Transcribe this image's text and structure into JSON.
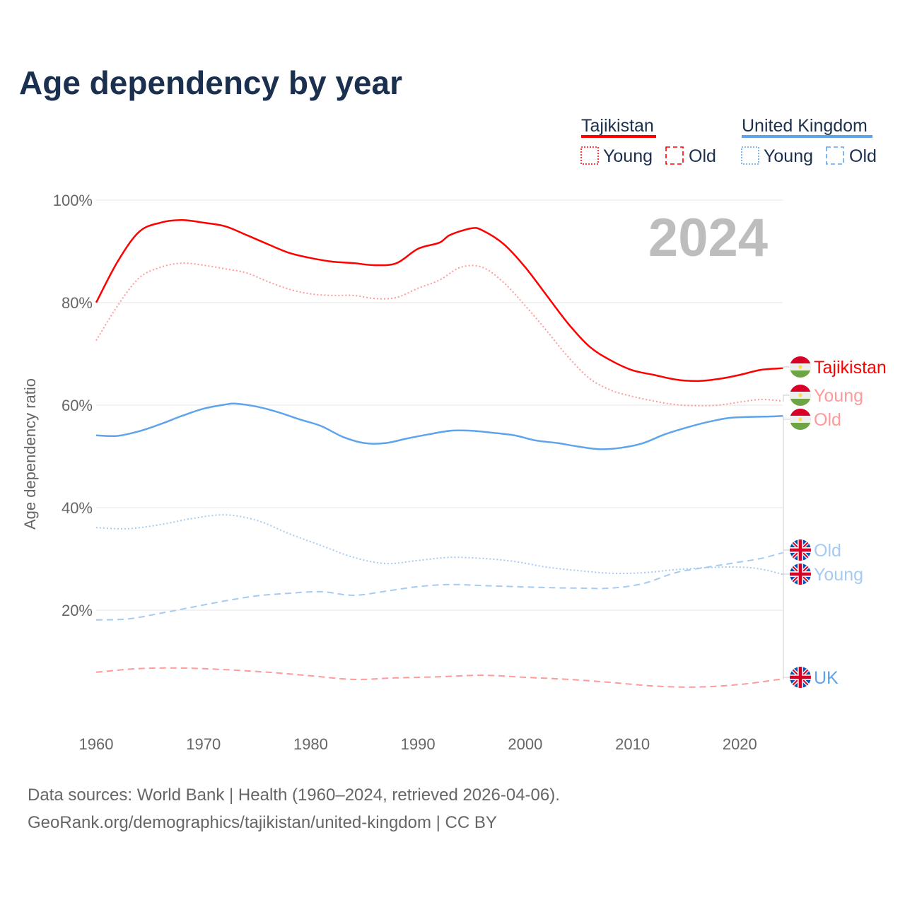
{
  "chart_data": {
    "type": "line",
    "title": "Age dependency by year",
    "xlabel": "",
    "ylabel": "Age dependency ratio",
    "xlim": [
      1960,
      2024
    ],
    "ylim": [
      0,
      100
    ],
    "x_ticks": [
      "1960",
      "1970",
      "1980",
      "1990",
      "2000",
      "2010",
      "2020"
    ],
    "y_ticks": [
      "20%",
      "40%",
      "60%",
      "80%",
      "100%"
    ],
    "grid": true,
    "year_watermark": "2024",
    "legend": {
      "groups": [
        {
          "name": "Tajikistan",
          "color": "#ff0000",
          "items": [
            "Young",
            "Old"
          ]
        },
        {
          "name": "United Kingdom",
          "color": "#5ea4ea",
          "items": [
            "Young",
            "Old"
          ]
        }
      ]
    },
    "series": [
      {
        "name": "Tajikistan",
        "end_label": "Tajikistan",
        "country": "tj",
        "color": "#ff0000",
        "style": "solid",
        "points": [
          [
            1960,
            80
          ],
          [
            1962,
            88
          ],
          [
            1964,
            93.8
          ],
          [
            1966,
            95.6
          ],
          [
            1968,
            96.1
          ],
          [
            1970,
            95.6
          ],
          [
            1972,
            94.9
          ],
          [
            1974,
            93.2
          ],
          [
            1976,
            91.4
          ],
          [
            1978,
            89.7
          ],
          [
            1980,
            88.7
          ],
          [
            1982,
            88
          ],
          [
            1984,
            87.7
          ],
          [
            1986,
            87.3
          ],
          [
            1988,
            87.7
          ],
          [
            1990,
            90.5
          ],
          [
            1992,
            91.7
          ],
          [
            1993,
            93.2
          ],
          [
            1995,
            94.5
          ],
          [
            1996,
            94.1
          ],
          [
            1998,
            91.4
          ],
          [
            2000,
            86.9
          ],
          [
            2002,
            81.4
          ],
          [
            2004,
            75.9
          ],
          [
            2006,
            71.4
          ],
          [
            2008,
            68.7
          ],
          [
            2010,
            66.8
          ],
          [
            2012,
            65.9
          ],
          [
            2014,
            65
          ],
          [
            2016,
            64.7
          ],
          [
            2018,
            65.1
          ],
          [
            2020,
            65.9
          ],
          [
            2022,
            66.9
          ],
          [
            2024,
            67.2
          ]
        ]
      },
      {
        "name": "Tajikistan Young",
        "end_label": "Young",
        "country": "tj",
        "color": "#ff9a9a",
        "style": "dotted",
        "points": [
          [
            1960,
            72.6
          ],
          [
            1962,
            79.4
          ],
          [
            1964,
            84.8
          ],
          [
            1966,
            86.9
          ],
          [
            1968,
            87.7
          ],
          [
            1970,
            87.3
          ],
          [
            1972,
            86.6
          ],
          [
            1974,
            85.8
          ],
          [
            1976,
            84.1
          ],
          [
            1978,
            82.6
          ],
          [
            1980,
            81.7
          ],
          [
            1982,
            81.4
          ],
          [
            1984,
            81.4
          ],
          [
            1986,
            80.8
          ],
          [
            1988,
            81
          ],
          [
            1990,
            82.8
          ],
          [
            1992,
            84.4
          ],
          [
            1994,
            86.9
          ],
          [
            1996,
            86.9
          ],
          [
            1998,
            83.9
          ],
          [
            2000,
            79.4
          ],
          [
            2002,
            74.5
          ],
          [
            2004,
            69.4
          ],
          [
            2006,
            65.2
          ],
          [
            2008,
            62.9
          ],
          [
            2010,
            61.7
          ],
          [
            2012,
            60.8
          ],
          [
            2014,
            60.1
          ],
          [
            2016,
            59.9
          ],
          [
            2018,
            60
          ],
          [
            2020,
            60.6
          ],
          [
            2022,
            61.1
          ],
          [
            2024,
            60.8
          ]
        ]
      },
      {
        "name": "Tajikistan Old",
        "end_label": "Old",
        "country": "tj",
        "color": "#ff9a9a",
        "style": "dashed",
        "points": [
          [
            1960,
            7.9
          ],
          [
            1964,
            8.6
          ],
          [
            1968,
            8.7
          ],
          [
            1972,
            8.4
          ],
          [
            1976,
            7.9
          ],
          [
            1980,
            7.2
          ],
          [
            1984,
            6.5
          ],
          [
            1988,
            6.8
          ],
          [
            1992,
            7
          ],
          [
            1996,
            7.3
          ],
          [
            2000,
            6.9
          ],
          [
            2004,
            6.5
          ],
          [
            2008,
            5.9
          ],
          [
            2012,
            5.2
          ],
          [
            2016,
            5
          ],
          [
            2020,
            5.5
          ],
          [
            2024,
            6.6
          ]
        ]
      },
      {
        "name": "United Kingdom",
        "end_label": "UK",
        "country": "uk",
        "color": "#5ea4ea",
        "style": "solid",
        "points": [
          [
            1960,
            54.1
          ],
          [
            1962,
            54
          ],
          [
            1964,
            54.9
          ],
          [
            1966,
            56.3
          ],
          [
            1968,
            57.9
          ],
          [
            1970,
            59.3
          ],
          [
            1972,
            60.1
          ],
          [
            1973,
            60.3
          ],
          [
            1975,
            59.7
          ],
          [
            1977,
            58.6
          ],
          [
            1979,
            57.2
          ],
          [
            1981,
            55.9
          ],
          [
            1983,
            53.8
          ],
          [
            1985,
            52.6
          ],
          [
            1987,
            52.6
          ],
          [
            1989,
            53.5
          ],
          [
            1991,
            54.3
          ],
          [
            1993,
            55
          ],
          [
            1995,
            55
          ],
          [
            1997,
            54.6
          ],
          [
            1999,
            54.1
          ],
          [
            2001,
            53.1
          ],
          [
            2003,
            52.6
          ],
          [
            2005,
            51.9
          ],
          [
            2007,
            51.4
          ],
          [
            2009,
            51.7
          ],
          [
            2011,
            52.6
          ],
          [
            2013,
            54.3
          ],
          [
            2015,
            55.6
          ],
          [
            2017,
            56.7
          ],
          [
            2019,
            57.5
          ],
          [
            2021,
            57.7
          ],
          [
            2023,
            57.8
          ],
          [
            2024,
            57.9
          ]
        ]
      },
      {
        "name": "United Kingdom Old",
        "end_label": "Old",
        "country": "uk",
        "color": "#a6cbf2",
        "style": "dashed",
        "points": [
          [
            1960,
            18.1
          ],
          [
            1963,
            18.3
          ],
          [
            1966,
            19.4
          ],
          [
            1969,
            20.6
          ],
          [
            1972,
            21.8
          ],
          [
            1975,
            22.8
          ],
          [
            1978,
            23.3
          ],
          [
            1981,
            23.6
          ],
          [
            1984,
            22.9
          ],
          [
            1987,
            23.7
          ],
          [
            1990,
            24.6
          ],
          [
            1993,
            25
          ],
          [
            1996,
            24.8
          ],
          [
            1999,
            24.6
          ],
          [
            2002,
            24.4
          ],
          [
            2005,
            24.3
          ],
          [
            2008,
            24.3
          ],
          [
            2011,
            25.2
          ],
          [
            2014,
            27.3
          ],
          [
            2017,
            28.4
          ],
          [
            2020,
            29.4
          ],
          [
            2022,
            30.1
          ],
          [
            2024,
            31.2
          ]
        ]
      },
      {
        "name": "United Kingdom Young",
        "end_label": "Young",
        "country": "uk",
        "color": "#a6cbf2",
        "style": "dotted",
        "points": [
          [
            1960,
            36.1
          ],
          [
            1963,
            35.9
          ],
          [
            1966,
            36.7
          ],
          [
            1969,
            37.9
          ],
          [
            1972,
            38.6
          ],
          [
            1975,
            37.5
          ],
          [
            1978,
            34.9
          ],
          [
            1981,
            32.6
          ],
          [
            1984,
            30.3
          ],
          [
            1987,
            29.1
          ],
          [
            1990,
            29.7
          ],
          [
            1993,
            30.3
          ],
          [
            1996,
            30.1
          ],
          [
            1999,
            29.5
          ],
          [
            2002,
            28.4
          ],
          [
            2005,
            27.7
          ],
          [
            2008,
            27.2
          ],
          [
            2011,
            27.3
          ],
          [
            2014,
            27.9
          ],
          [
            2017,
            28.3
          ],
          [
            2020,
            28.4
          ],
          [
            2022,
            28
          ],
          [
            2024,
            27
          ]
        ]
      }
    ]
  },
  "footer": {
    "line1": "Data sources: World Bank | Health (1960–2024, retrieved 2026-04-06).",
    "line2": "GeoRank.org/demographics/tajikistan/united-kingdom | CC BY"
  }
}
